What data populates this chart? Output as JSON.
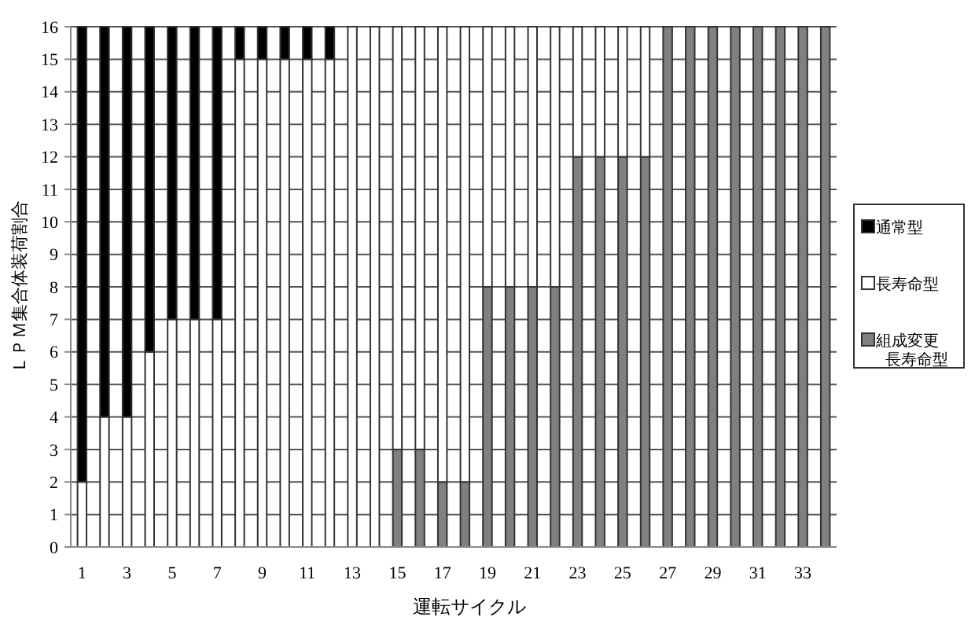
{
  "chart_data": {
    "type": "bar",
    "stacked": true,
    "xlabel": "運転サイクル",
    "ylabel": "ＬＰＭ集合体装荷割合",
    "categories": [
      "1",
      null,
      "3",
      null,
      "5",
      null,
      "7",
      null,
      "9",
      null,
      "11",
      null,
      "13",
      null,
      "15",
      null,
      "17",
      null,
      "19",
      null,
      "21",
      null,
      "23",
      null,
      "25",
      null,
      "27",
      null,
      "29",
      null,
      "31",
      null,
      "33",
      null
    ],
    "series": [
      {
        "name": "組成変更長寿命型",
        "color": "#808080",
        "values": [
          0,
          0,
          0,
          0,
          0,
          0,
          0,
          0,
          0,
          0,
          0,
          0,
          0,
          0,
          3,
          3,
          2,
          2,
          8,
          8,
          8,
          8,
          12,
          12,
          12,
          12,
          16,
          16,
          16,
          16,
          16,
          16,
          16,
          16
        ]
      },
      {
        "name": "長寿命型",
        "color": "#ffffff",
        "values": [
          2,
          4,
          4,
          6,
          7,
          7,
          7,
          15,
          15,
          15,
          15,
          15,
          16,
          16,
          13,
          13,
          14,
          14,
          8,
          8,
          8,
          8,
          4,
          4,
          4,
          4,
          0,
          0,
          0,
          0,
          0,
          0,
          0,
          0
        ]
      },
      {
        "name": "通常型",
        "color": "#000000",
        "values": [
          14,
          12,
          12,
          10,
          9,
          9,
          9,
          1,
          1,
          1,
          1,
          1,
          0,
          0,
          0,
          0,
          0,
          0,
          0,
          0,
          0,
          0,
          0,
          0,
          0,
          0,
          0,
          0,
          0,
          0,
          0,
          0,
          0,
          0
        ]
      }
    ],
    "ylim": [
      0,
      16
    ],
    "yticks": [
      0,
      1,
      2,
      3,
      4,
      5,
      6,
      7,
      8,
      9,
      10,
      11,
      12,
      13,
      14,
      15,
      16
    ],
    "grid": "y",
    "legend": "right"
  }
}
